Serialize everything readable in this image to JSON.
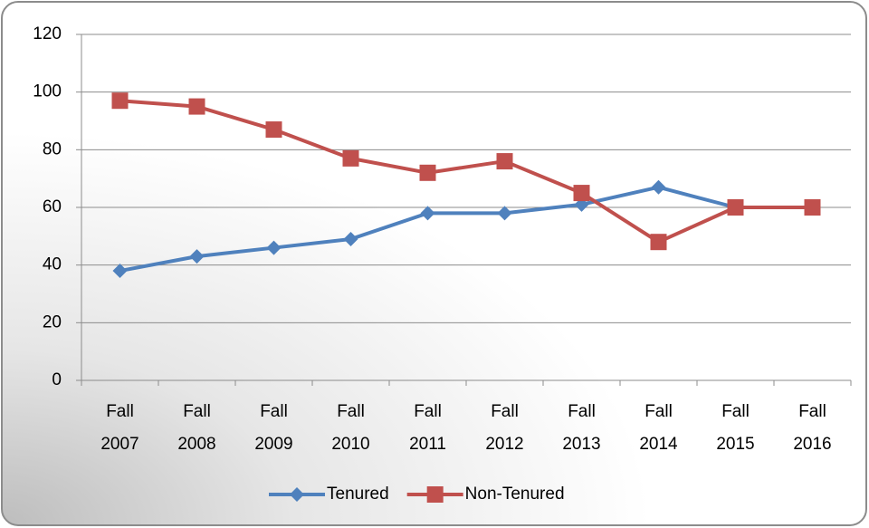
{
  "chart_data": {
    "type": "line",
    "categories": [
      "Fall 2007",
      "Fall 2008",
      "Fall 2009",
      "Fall 2010",
      "Fall 2011",
      "Fall 2012",
      "Fall 2013",
      "Fall 2014",
      "Fall 2015",
      "Fall 2016"
    ],
    "series": [
      {
        "name": "Tenured",
        "color": "#4f81bd",
        "marker": "diamond",
        "values": [
          38,
          43,
          46,
          49,
          58,
          58,
          61,
          67,
          60,
          60
        ]
      },
      {
        "name": "Non-Tenured",
        "color": "#c0504d",
        "marker": "square",
        "values": [
          97,
          95,
          87,
          77,
          72,
          76,
          65,
          48,
          60,
          60
        ]
      }
    ],
    "ylim": [
      0,
      120
    ],
    "yticks": [
      0,
      20,
      40,
      60,
      80,
      100,
      120
    ],
    "grid": true,
    "legend": "bottom"
  }
}
